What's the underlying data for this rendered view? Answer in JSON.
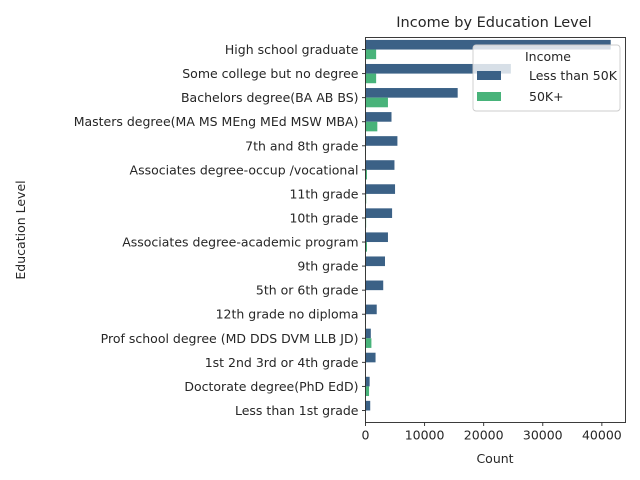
{
  "chart_data": {
    "type": "bar",
    "orientation": "horizontal",
    "title": "Income by Education Level",
    "xlabel": "Count",
    "ylabel": "Education Level",
    "xlim": [
      0,
      44000
    ],
    "xticks": [
      "0",
      "10000",
      "20000",
      "30000",
      "40000"
    ],
    "xtick_values": [
      0,
      10000,
      20000,
      30000,
      40000
    ],
    "grid": false,
    "legend": {
      "title": "Income",
      "placement": "top-right"
    },
    "categories": [
      " High school graduate",
      " Some college but no degree",
      " Bachelors degree(BA AB BS)",
      " Masters degree(MA MS MEng MEd MSW MBA)",
      " 7th and 8th grade",
      " Associates degree-occup /vocational",
      " 11th grade",
      " 10th grade",
      " Associates degree-academic program",
      " 9th grade",
      " 5th or 6th grade",
      " 12th grade no diploma",
      " Prof school degree (MD DDS DVM LLB JD)",
      " 1st 2nd 3rd or 4th grade",
      " Doctorate degree(PhD EdD)",
      " Less than 1st grade"
    ],
    "series": [
      {
        "name": "Less than 50K",
        "color": "#3b6186",
        "values": [
          41500,
          24600,
          15600,
          4400,
          5400,
          4900,
          5000,
          4500,
          3800,
          3300,
          3000,
          1900,
          900,
          1700,
          700,
          800
        ]
      },
      {
        "name": "50K+",
        "color": "#48b37a",
        "values": [
          1800,
          1800,
          3800,
          2000,
          60,
          250,
          120,
          110,
          250,
          40,
          20,
          60,
          1000,
          10,
          600,
          5
        ]
      }
    ]
  }
}
